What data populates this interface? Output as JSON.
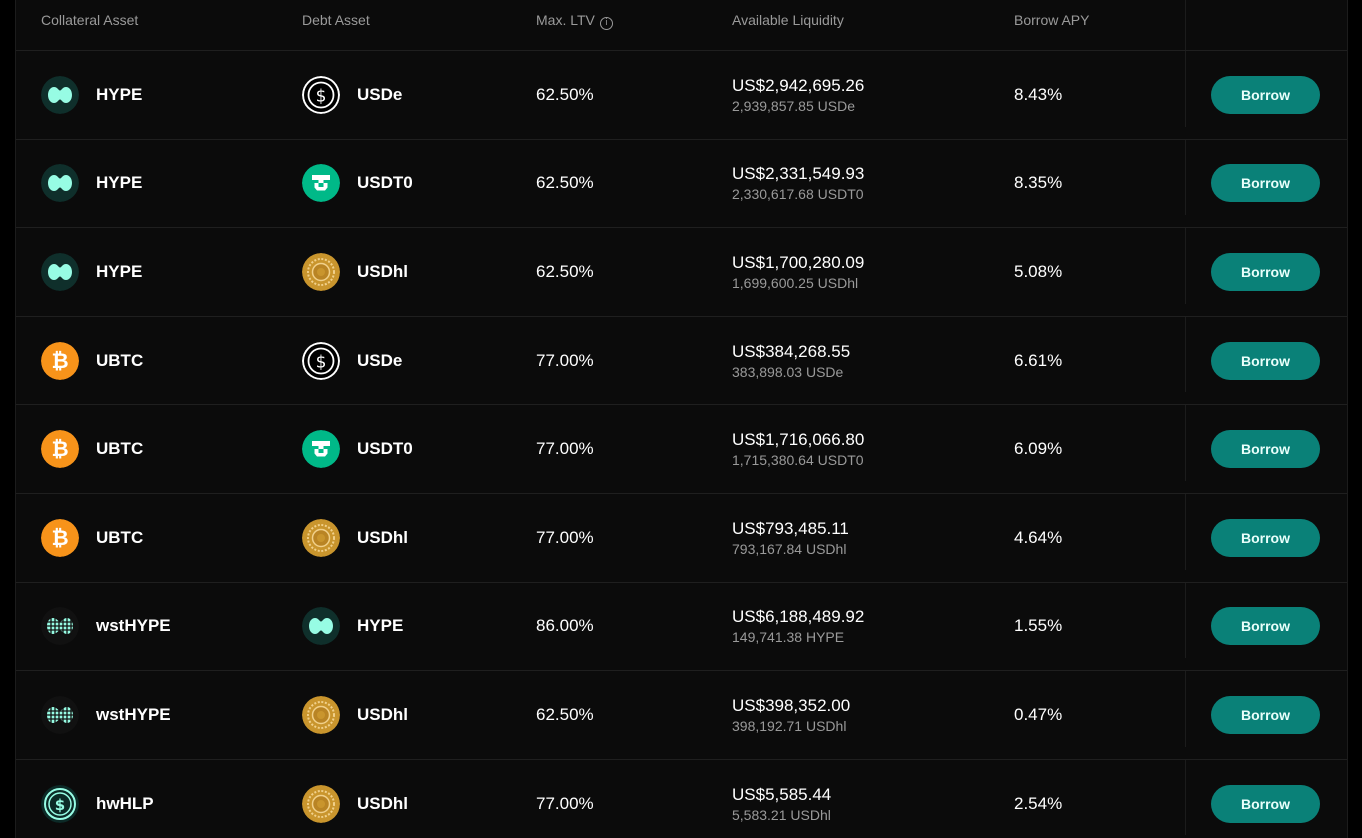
{
  "headers": {
    "collateral": "Collateral Asset",
    "debt": "Debt Asset",
    "ltv": "Max. LTV",
    "liquidity": "Available Liquidity",
    "apy": "Borrow APY"
  },
  "colors": {
    "accent": "#0a8178",
    "background": "#0b0b0b",
    "muted_text": "#9a9a9a"
  },
  "icons": {
    "HYPE": "hype-icon",
    "UBTC": "bitcoin-icon",
    "wstHYPE": "wsthype-icon",
    "hwHLP": "hwhlp-icon",
    "USDe": "usde-icon",
    "USDT0": "usdt0-icon",
    "USDhl": "usdhl-icon"
  },
  "rows": [
    {
      "collateral": "HYPE",
      "debt": "USDe",
      "ltv": "62.50%",
      "liquidity_usd": "US$2,942,695.26",
      "liquidity_amount": "2,939,857.85",
      "liquidity_token": "USDe",
      "apy": "8.43%",
      "action": "Borrow"
    },
    {
      "collateral": "HYPE",
      "debt": "USDT0",
      "ltv": "62.50%",
      "liquidity_usd": "US$2,331,549.93",
      "liquidity_amount": "2,330,617.68",
      "liquidity_token": "USDT0",
      "apy": "8.35%",
      "action": "Borrow"
    },
    {
      "collateral": "HYPE",
      "debt": "USDhl",
      "ltv": "62.50%",
      "liquidity_usd": "US$1,700,280.09",
      "liquidity_amount": "1,699,600.25",
      "liquidity_token": "USDhl",
      "apy": "5.08%",
      "action": "Borrow"
    },
    {
      "collateral": "UBTC",
      "debt": "USDe",
      "ltv": "77.00%",
      "liquidity_usd": "US$384,268.55",
      "liquidity_amount": "383,898.03",
      "liquidity_token": "USDe",
      "apy": "6.61%",
      "action": "Borrow"
    },
    {
      "collateral": "UBTC",
      "debt": "USDT0",
      "ltv": "77.00%",
      "liquidity_usd": "US$1,716,066.80",
      "liquidity_amount": "1,715,380.64",
      "liquidity_token": "USDT0",
      "apy": "6.09%",
      "action": "Borrow"
    },
    {
      "collateral": "UBTC",
      "debt": "USDhl",
      "ltv": "77.00%",
      "liquidity_usd": "US$793,485.11",
      "liquidity_amount": "793,167.84",
      "liquidity_token": "USDhl",
      "apy": "4.64%",
      "action": "Borrow"
    },
    {
      "collateral": "wstHYPE",
      "debt": "HYPE",
      "ltv": "86.00%",
      "liquidity_usd": "US$6,188,489.92",
      "liquidity_amount": "149,741.38",
      "liquidity_token": "HYPE",
      "apy": "1.55%",
      "action": "Borrow"
    },
    {
      "collateral": "wstHYPE",
      "debt": "USDhl",
      "ltv": "62.50%",
      "liquidity_usd": "US$398,352.00",
      "liquidity_amount": "398,192.71",
      "liquidity_token": "USDhl",
      "apy": "0.47%",
      "action": "Borrow"
    },
    {
      "collateral": "hwHLP",
      "debt": "USDhl",
      "ltv": "77.00%",
      "liquidity_usd": "US$5,585.44",
      "liquidity_amount": "5,583.21",
      "liquidity_token": "USDhl",
      "apy": "2.54%",
      "action": "Borrow"
    }
  ]
}
